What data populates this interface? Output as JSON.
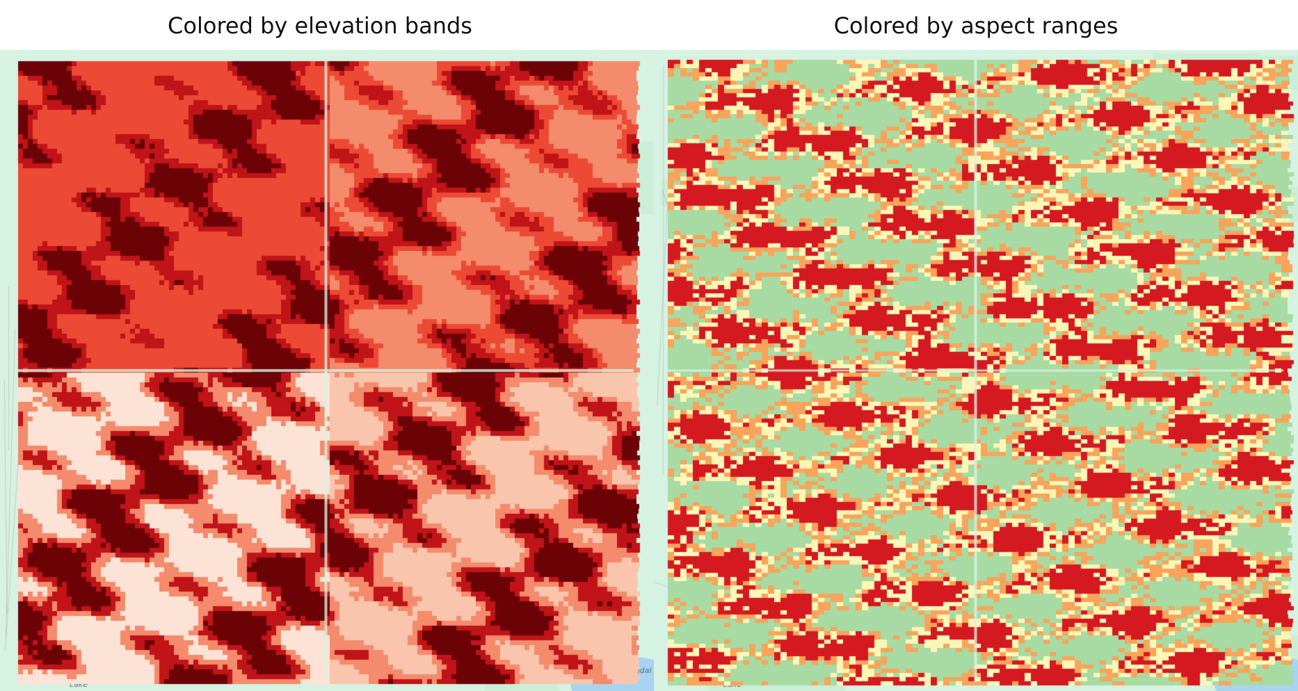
{
  "titles": {
    "left": "Colored by elevation bands",
    "right": "Colored by aspect ranges"
  },
  "basemap": {
    "water_label_left": "Lake",
    "water_label_right": "Lake",
    "edge_label": "andal",
    "colors": {
      "land": "#d6f2e2",
      "land_alt": "#cbeed8",
      "water": "#a8d4ef",
      "road": "#9b9b9b"
    }
  },
  "elevation_map": {
    "colors": {
      "darkest": "#6b0206",
      "dark": "#c01418",
      "mid": "#ec4a34",
      "light": "#f38b6c",
      "pale": "#f9c6ad",
      "palest": "#fde3d6"
    },
    "tile_base_colors": [
      "mid",
      "light",
      "palest",
      "pale"
    ]
  },
  "aspect_map": {
    "colors": {
      "green": "#a7dba3",
      "yellow": "#fdf7b7",
      "orange": "#f8a45b",
      "red": "#d51921"
    }
  }
}
